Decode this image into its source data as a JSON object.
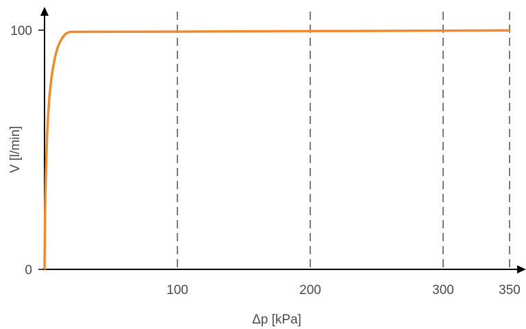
{
  "chart_data": {
    "type": "line",
    "xlabel": "Δp [kPa]",
    "ylabel": "V [l/min]",
    "xlim": [
      0,
      360
    ],
    "ylim": [
      0,
      100
    ],
    "x_ticks": [
      {
        "value": 100,
        "label": "100"
      },
      {
        "value": 200,
        "label": "200"
      },
      {
        "value": 300,
        "label": "300"
      },
      {
        "value": 350,
        "label": "350"
      }
    ],
    "y_ticks": [
      {
        "value": 0,
        "label": "0"
      },
      {
        "value": 100,
        "label": "100"
      }
    ],
    "vertical_gridlines_at": [
      100,
      200,
      300,
      350
    ],
    "grid_style": "dashed",
    "series": [
      {
        "color": "#f08a2c",
        "x": [
          0,
          0.5,
          1,
          2,
          3,
          4,
          5,
          6,
          8,
          10,
          12,
          14,
          16,
          18,
          20,
          100,
          200,
          300,
          350
        ],
        "y": [
          0,
          27,
          40,
          57,
          67,
          74,
          79,
          83,
          89,
          93,
          95.5,
          97.3,
          98.5,
          99.1,
          99.3,
          99.4,
          99.6,
          99.8,
          99.9
        ]
      }
    ]
  }
}
